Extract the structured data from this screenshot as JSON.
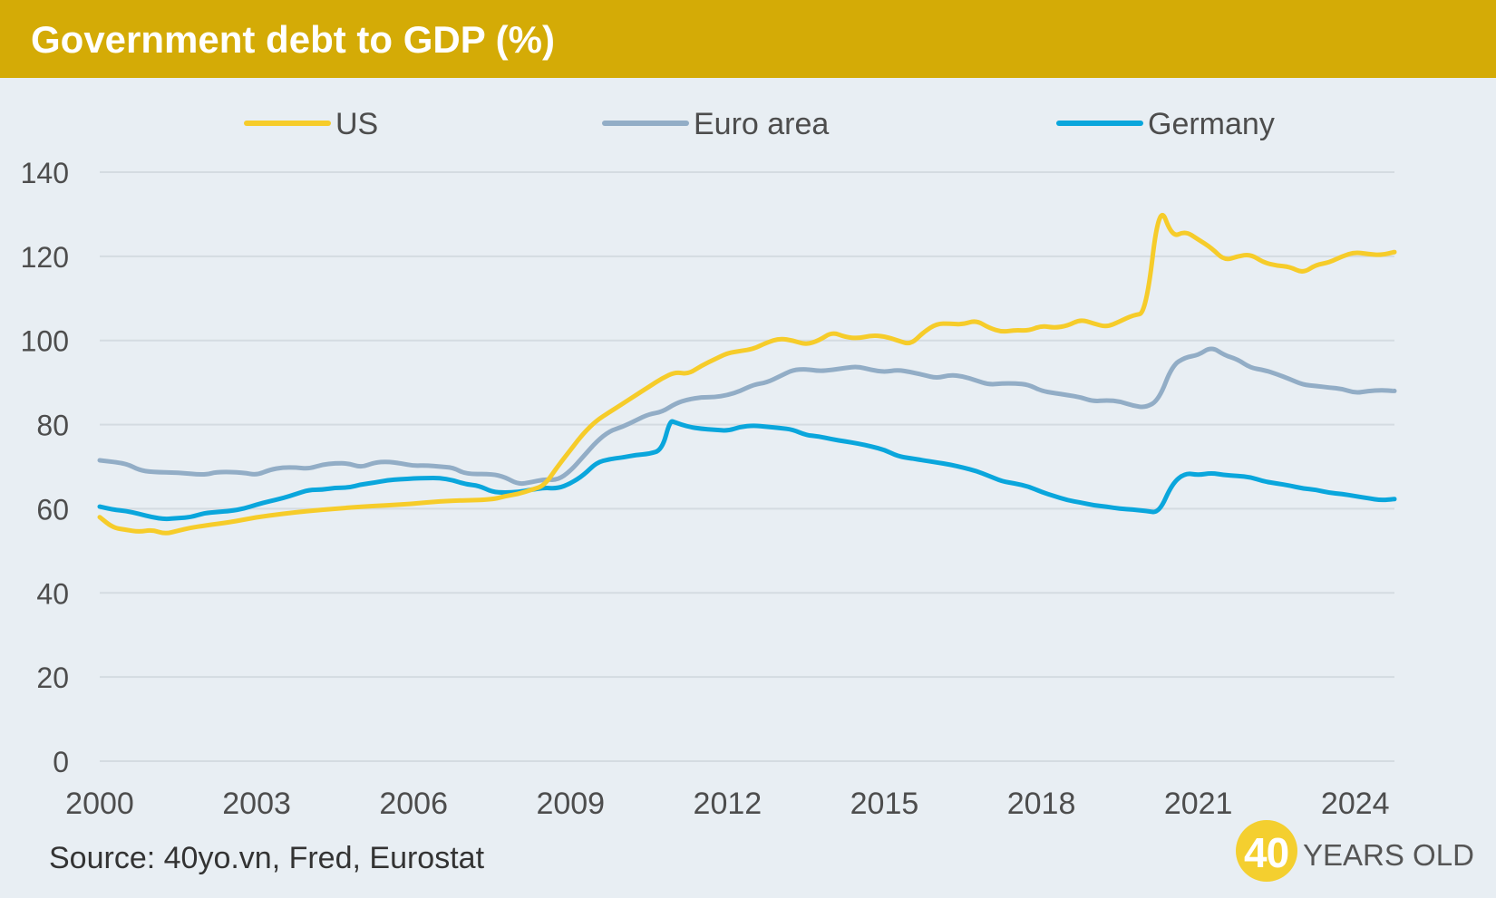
{
  "header": {
    "title": "Government debt to GDP (%)"
  },
  "footer": {
    "source": "Source: 40yo.vn, Fred, Eurostat"
  },
  "logo": {
    "number": "40",
    "text": "YEARS OLD",
    "color": "#f4cf2f"
  },
  "chart_data": {
    "type": "line",
    "title": "Government debt to GDP (%)",
    "ylim": [
      0,
      140
    ],
    "xlim": [
      2000,
      2024.75
    ],
    "y_ticks": [
      0,
      20,
      40,
      60,
      80,
      100,
      120,
      140
    ],
    "x_ticks": [
      2000,
      2003,
      2006,
      2009,
      2012,
      2015,
      2018,
      2021,
      2024
    ],
    "grid": true,
    "legend_position": "top",
    "series": [
      {
        "name": "US",
        "color": "#f6cc2a",
        "points": [
          [
            2000,
            58
          ],
          [
            2000.25,
            55.5
          ],
          [
            2000.5,
            55
          ],
          [
            2000.75,
            54.5
          ],
          [
            2001,
            55
          ],
          [
            2001.25,
            54
          ],
          [
            2001.5,
            54.8
          ],
          [
            2001.75,
            55.5
          ],
          [
            2002,
            56
          ],
          [
            2002.5,
            56.8
          ],
          [
            2003,
            58
          ],
          [
            2003.5,
            58.8
          ],
          [
            2004,
            59.5
          ],
          [
            2004.5,
            60
          ],
          [
            2005,
            60.5
          ],
          [
            2005.5,
            60.8
          ],
          [
            2006,
            61.2
          ],
          [
            2006.5,
            61.8
          ],
          [
            2007,
            62
          ],
          [
            2007.5,
            62.2
          ],
          [
            2007.75,
            63
          ],
          [
            2008,
            63.5
          ],
          [
            2008.25,
            64.5
          ],
          [
            2008.5,
            65.5
          ],
          [
            2008.75,
            70
          ],
          [
            2009,
            74
          ],
          [
            2009.25,
            78
          ],
          [
            2009.5,
            81
          ],
          [
            2009.75,
            83
          ],
          [
            2010,
            85
          ],
          [
            2010.25,
            87
          ],
          [
            2010.5,
            89
          ],
          [
            2010.75,
            91
          ],
          [
            2011,
            92.5
          ],
          [
            2011.25,
            92
          ],
          [
            2011.5,
            94
          ],
          [
            2011.75,
            95.5
          ],
          [
            2012,
            97
          ],
          [
            2012.25,
            97.5
          ],
          [
            2012.5,
            98
          ],
          [
            2012.75,
            99.5
          ],
          [
            2013,
            100.5
          ],
          [
            2013.25,
            100
          ],
          [
            2013.5,
            99
          ],
          [
            2013.75,
            100
          ],
          [
            2014,
            102
          ],
          [
            2014.25,
            100.8
          ],
          [
            2014.5,
            100.5
          ],
          [
            2014.75,
            101.2
          ],
          [
            2015,
            101
          ],
          [
            2015.25,
            100
          ],
          [
            2015.5,
            99
          ],
          [
            2015.75,
            102
          ],
          [
            2016,
            104
          ],
          [
            2016.25,
            104
          ],
          [
            2016.5,
            103.8
          ],
          [
            2016.75,
            104.8
          ],
          [
            2017,
            103
          ],
          [
            2017.25,
            102
          ],
          [
            2017.5,
            102.5
          ],
          [
            2017.75,
            102.3
          ],
          [
            2018,
            103.5
          ],
          [
            2018.25,
            103
          ],
          [
            2018.5,
            103.5
          ],
          [
            2018.75,
            105
          ],
          [
            2019,
            104
          ],
          [
            2019.25,
            103.2
          ],
          [
            2019.5,
            104.5
          ],
          [
            2019.75,
            106
          ],
          [
            2020,
            106.5
          ],
          [
            2020.25,
            133
          ],
          [
            2020.5,
            124.5
          ],
          [
            2020.75,
            126
          ],
          [
            2021,
            124
          ],
          [
            2021.25,
            122
          ],
          [
            2021.5,
            119
          ],
          [
            2021.75,
            120
          ],
          [
            2022,
            120.5
          ],
          [
            2022.25,
            118.5
          ],
          [
            2022.5,
            117.8
          ],
          [
            2022.75,
            117.5
          ],
          [
            2023,
            116
          ],
          [
            2023.25,
            118
          ],
          [
            2023.5,
            118.5
          ],
          [
            2023.75,
            120
          ],
          [
            2024,
            121
          ],
          [
            2024.25,
            120.5
          ],
          [
            2024.5,
            120.3
          ],
          [
            2024.75,
            121
          ]
        ]
      },
      {
        "name": "Euro area",
        "color": "#92adc6",
        "points": [
          [
            2000,
            71.5
          ],
          [
            2000.5,
            70.8
          ],
          [
            2000.75,
            69.2
          ],
          [
            2001,
            68.7
          ],
          [
            2001.5,
            68.6
          ],
          [
            2002,
            68
          ],
          [
            2002.25,
            68.8
          ],
          [
            2002.75,
            68.6
          ],
          [
            2003,
            68
          ],
          [
            2003.25,
            69.3
          ],
          [
            2003.5,
            69.8
          ],
          [
            2003.75,
            69.8
          ],
          [
            2004,
            69.5
          ],
          [
            2004.25,
            70.5
          ],
          [
            2004.5,
            70.8
          ],
          [
            2004.75,
            70.8
          ],
          [
            2005,
            69.8
          ],
          [
            2005.25,
            71
          ],
          [
            2005.5,
            71.2
          ],
          [
            2005.75,
            70.8
          ],
          [
            2006,
            70.2
          ],
          [
            2006.25,
            70.3
          ],
          [
            2006.5,
            70
          ],
          [
            2006.75,
            69.8
          ],
          [
            2007,
            68.2
          ],
          [
            2007.5,
            68.3
          ],
          [
            2007.75,
            67.5
          ],
          [
            2008,
            65.8
          ],
          [
            2008.25,
            66.3
          ],
          [
            2008.5,
            67
          ],
          [
            2008.75,
            66.8
          ],
          [
            2009,
            69
          ],
          [
            2009.25,
            72.5
          ],
          [
            2009.5,
            76
          ],
          [
            2009.75,
            78.5
          ],
          [
            2010,
            79.5
          ],
          [
            2010.25,
            81
          ],
          [
            2010.5,
            82.5
          ],
          [
            2010.75,
            83
          ],
          [
            2011,
            85
          ],
          [
            2011.25,
            86
          ],
          [
            2011.5,
            86.5
          ],
          [
            2011.75,
            86.5
          ],
          [
            2012,
            87
          ],
          [
            2012.25,
            88
          ],
          [
            2012.5,
            89.5
          ],
          [
            2012.75,
            90
          ],
          [
            2013,
            91.5
          ],
          [
            2013.25,
            93
          ],
          [
            2013.5,
            93.2
          ],
          [
            2013.75,
            92.7
          ],
          [
            2014,
            93
          ],
          [
            2014.25,
            93.5
          ],
          [
            2014.5,
            93.8
          ],
          [
            2014.75,
            93
          ],
          [
            2015,
            92.5
          ],
          [
            2015.25,
            93
          ],
          [
            2015.5,
            92.5
          ],
          [
            2015.75,
            91.8
          ],
          [
            2016,
            91
          ],
          [
            2016.25,
            91.8
          ],
          [
            2016.5,
            91.5
          ],
          [
            2016.75,
            90.5
          ],
          [
            2017,
            89.5
          ],
          [
            2017.25,
            89.8
          ],
          [
            2017.5,
            89.8
          ],
          [
            2017.75,
            89.5
          ],
          [
            2018,
            88
          ],
          [
            2018.25,
            87.5
          ],
          [
            2018.5,
            87
          ],
          [
            2018.75,
            86.5
          ],
          [
            2019,
            85.5
          ],
          [
            2019.25,
            85.8
          ],
          [
            2019.5,
            85.5
          ],
          [
            2019.75,
            84.5
          ],
          [
            2020,
            84
          ],
          [
            2020.25,
            86
          ],
          [
            2020.5,
            94
          ],
          [
            2020.75,
            96
          ],
          [
            2021,
            96.5
          ],
          [
            2021.25,
            98.5
          ],
          [
            2021.5,
            96.5
          ],
          [
            2021.75,
            95.5
          ],
          [
            2022,
            93.5
          ],
          [
            2022.25,
            93
          ],
          [
            2022.5,
            92
          ],
          [
            2022.75,
            90.8
          ],
          [
            2023,
            89.5
          ],
          [
            2023.25,
            89.2
          ],
          [
            2023.5,
            88.8
          ],
          [
            2023.75,
            88.5
          ],
          [
            2024,
            87.5
          ],
          [
            2024.25,
            88
          ],
          [
            2024.5,
            88.2
          ],
          [
            2024.75,
            88
          ]
        ]
      },
      {
        "name": "Germany",
        "color": "#0aa6dc",
        "points": [
          [
            2000,
            60.5
          ],
          [
            2000.25,
            59.8
          ],
          [
            2000.5,
            59.5
          ],
          [
            2000.75,
            58.8
          ],
          [
            2001,
            58
          ],
          [
            2001.25,
            57.5
          ],
          [
            2001.5,
            57.8
          ],
          [
            2001.75,
            58
          ],
          [
            2002,
            59
          ],
          [
            2002.25,
            59.2
          ],
          [
            2002.5,
            59.5
          ],
          [
            2002.75,
            60
          ],
          [
            2003,
            61
          ],
          [
            2003.25,
            61.8
          ],
          [
            2003.5,
            62.5
          ],
          [
            2003.75,
            63.5
          ],
          [
            2004,
            64.5
          ],
          [
            2004.25,
            64.5
          ],
          [
            2004.5,
            65
          ],
          [
            2004.75,
            65
          ],
          [
            2005,
            65.8
          ],
          [
            2005.25,
            66.2
          ],
          [
            2005.5,
            66.8
          ],
          [
            2005.75,
            67
          ],
          [
            2006,
            67.2
          ],
          [
            2006.25,
            67.3
          ],
          [
            2006.5,
            67.3
          ],
          [
            2006.75,
            66.8
          ],
          [
            2007,
            65.8
          ],
          [
            2007.25,
            65.5
          ],
          [
            2007.5,
            64
          ],
          [
            2007.75,
            63.8
          ],
          [
            2008,
            64
          ],
          [
            2008.25,
            64.5
          ],
          [
            2008.5,
            65
          ],
          [
            2008.75,
            64.8
          ],
          [
            2009,
            66
          ],
          [
            2009.25,
            68
          ],
          [
            2009.5,
            71
          ],
          [
            2009.75,
            71.8
          ],
          [
            2010,
            72.2
          ],
          [
            2010.25,
            72.8
          ],
          [
            2010.5,
            73
          ],
          [
            2010.75,
            74
          ],
          [
            2010.9,
            81
          ],
          [
            2011,
            80.5
          ],
          [
            2011.25,
            79.5
          ],
          [
            2011.5,
            79
          ],
          [
            2011.75,
            78.8
          ],
          [
            2012,
            78.5
          ],
          [
            2012.25,
            79.5
          ],
          [
            2012.5,
            79.8
          ],
          [
            2012.75,
            79.5
          ],
          [
            2013,
            79.2
          ],
          [
            2013.25,
            78.8
          ],
          [
            2013.5,
            77.5
          ],
          [
            2013.75,
            77.2
          ],
          [
            2014,
            76.5
          ],
          [
            2014.25,
            76
          ],
          [
            2014.5,
            75.5
          ],
          [
            2014.75,
            74.8
          ],
          [
            2015,
            74
          ],
          [
            2015.25,
            72.5
          ],
          [
            2015.5,
            72
          ],
          [
            2015.75,
            71.5
          ],
          [
            2016,
            71
          ],
          [
            2016.25,
            70.5
          ],
          [
            2016.5,
            69.8
          ],
          [
            2016.75,
            69
          ],
          [
            2017,
            67.8
          ],
          [
            2017.25,
            66.5
          ],
          [
            2017.5,
            66
          ],
          [
            2017.75,
            65.3
          ],
          [
            2018,
            64
          ],
          [
            2018.25,
            63
          ],
          [
            2018.5,
            62
          ],
          [
            2018.75,
            61.5
          ],
          [
            2019,
            60.8
          ],
          [
            2019.25,
            60.5
          ],
          [
            2019.5,
            60
          ],
          [
            2019.75,
            59.8
          ],
          [
            2020,
            59.5
          ],
          [
            2020.25,
            59
          ],
          [
            2020.5,
            66
          ],
          [
            2020.75,
            68.5
          ],
          [
            2021,
            68
          ],
          [
            2021.25,
            68.5
          ],
          [
            2021.5,
            68
          ],
          [
            2021.75,
            67.8
          ],
          [
            2022,
            67.5
          ],
          [
            2022.25,
            66.5
          ],
          [
            2022.5,
            66
          ],
          [
            2022.75,
            65.5
          ],
          [
            2023,
            64.8
          ],
          [
            2023.25,
            64.5
          ],
          [
            2023.5,
            63.8
          ],
          [
            2023.75,
            63.5
          ],
          [
            2024,
            63
          ],
          [
            2024.25,
            62.5
          ],
          [
            2024.5,
            62
          ],
          [
            2024.75,
            62.3
          ]
        ]
      }
    ]
  }
}
